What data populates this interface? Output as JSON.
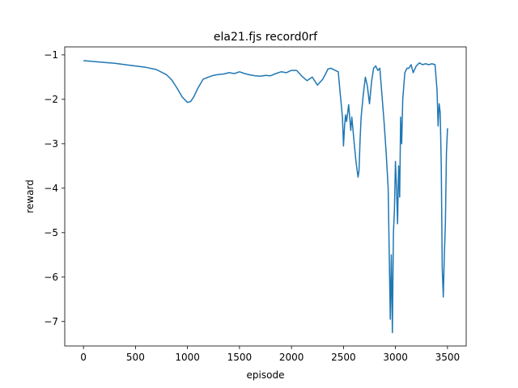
{
  "chart_data": {
    "type": "line",
    "title": "ela21.fjs record0rf",
    "xlabel": "episode",
    "ylabel": "reward",
    "xlim": [
      -180,
      3680
    ],
    "ylim": [
      -7.55,
      -0.82
    ],
    "xticks": [
      0,
      500,
      1000,
      1500,
      2000,
      2500,
      3000,
      3500
    ],
    "yticks": [
      -7,
      -6,
      -5,
      -4,
      -3,
      -2,
      -1
    ],
    "xtick_labels": [
      "0",
      "500",
      "1000",
      "1500",
      "2000",
      "2500",
      "3000",
      "3500"
    ],
    "ytick_labels": [
      "−7",
      "−6",
      "−5",
      "−4",
      "−3",
      "−2",
      "−1"
    ],
    "grid": false,
    "line_color": "#1f77b4",
    "series": [
      {
        "x": [
          0,
          100,
          200,
          300,
          400,
          500,
          600,
          700,
          800,
          850,
          900,
          950,
          1000,
          1030,
          1060,
          1100,
          1150,
          1200,
          1250,
          1300,
          1350,
          1400,
          1450,
          1500,
          1550,
          1600,
          1650,
          1700,
          1750,
          1800,
          1850,
          1900,
          1950,
          2000,
          2050,
          2100,
          2150,
          2200,
          2250,
          2300,
          2330,
          2350,
          2380,
          2420,
          2450,
          2470,
          2490,
          2500,
          2510,
          2520,
          2530,
          2550,
          2570,
          2580,
          2600,
          2620,
          2640,
          2650,
          2660,
          2670,
          2690,
          2710,
          2730,
          2750,
          2770,
          2790,
          2810,
          2830,
          2850,
          2870,
          2890,
          2910,
          2930,
          2950,
          2960,
          2970,
          2980,
          2990,
          3000,
          3010,
          3020,
          3030,
          3040,
          3050,
          3060,
          3070,
          3090,
          3110,
          3130,
          3150,
          3170,
          3200,
          3230,
          3260,
          3290,
          3320,
          3350,
          3380,
          3400,
          3410,
          3420,
          3430,
          3440,
          3450,
          3460,
          3470,
          3480,
          3490,
          3500
        ],
        "values": [
          -1.13,
          -1.15,
          -1.17,
          -1.19,
          -1.22,
          -1.25,
          -1.28,
          -1.33,
          -1.45,
          -1.57,
          -1.75,
          -1.95,
          -2.07,
          -2.05,
          -1.95,
          -1.75,
          -1.55,
          -1.5,
          -1.46,
          -1.44,
          -1.43,
          -1.4,
          -1.42,
          -1.38,
          -1.42,
          -1.45,
          -1.47,
          -1.48,
          -1.46,
          -1.47,
          -1.42,
          -1.38,
          -1.4,
          -1.35,
          -1.35,
          -1.48,
          -1.58,
          -1.5,
          -1.68,
          -1.55,
          -1.42,
          -1.32,
          -1.3,
          -1.35,
          -1.38,
          -1.9,
          -2.4,
          -3.05,
          -2.6,
          -2.35,
          -2.5,
          -2.12,
          -2.7,
          -2.4,
          -2.9,
          -3.4,
          -3.75,
          -3.6,
          -2.9,
          -2.4,
          -1.9,
          -1.5,
          -1.7,
          -2.1,
          -1.6,
          -1.3,
          -1.25,
          -1.35,
          -1.3,
          -1.9,
          -2.5,
          -3.2,
          -4.0,
          -6.95,
          -5.5,
          -7.25,
          -5.0,
          -4.5,
          -3.4,
          -4.0,
          -4.8,
          -3.5,
          -4.2,
          -2.4,
          -3.0,
          -2.0,
          -1.4,
          -1.3,
          -1.3,
          -1.22,
          -1.4,
          -1.25,
          -1.18,
          -1.22,
          -1.2,
          -1.22,
          -1.2,
          -1.22,
          -1.8,
          -2.6,
          -2.1,
          -2.3,
          -3.5,
          -5.8,
          -6.45,
          -5.5,
          -4.8,
          -3.2,
          -2.65
        ]
      }
    ]
  }
}
